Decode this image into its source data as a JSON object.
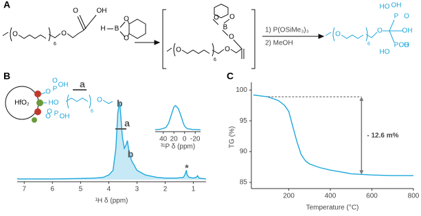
{
  "panel_labels": [
    "A",
    "B",
    "C"
  ],
  "scheme": {
    "reactant": [
      "O",
      "6",
      "O",
      "O",
      "OH"
    ],
    "borane": [
      "H",
      "B",
      "O",
      "O"
    ],
    "intermediate": [
      "O",
      "6",
      "O",
      "O",
      "B",
      "O",
      "O"
    ],
    "conditions": [
      "1) P(OSiMe₃)₃",
      "2) MeOH"
    ],
    "product": [
      "O",
      "6",
      "O",
      "OH",
      "P",
      "O",
      "OH",
      "HO",
      "OH",
      "P",
      "O",
      "HO"
    ]
  },
  "surface": [
    "HfO₂",
    "O",
    "P",
    "OH",
    "HO",
    "O",
    "P",
    "OH",
    "O",
    "O",
    "6",
    "O",
    "a",
    "b"
  ],
  "chart_data": [
    {
      "type": "line",
      "x_label": "¹H δ (ppm)",
      "xlim": [
        7.25,
        0.55
      ],
      "xticks": [
        7,
        6,
        5,
        4,
        3,
        2,
        1
      ],
      "ylim": [
        0,
        100
      ],
      "color": "#1ea7dc",
      "fill": true,
      "x": [
        7.25,
        6,
        5,
        4.5,
        4.2,
        4.0,
        3.85,
        3.75,
        3.68,
        3.62,
        3.58,
        3.52,
        3.45,
        3.38,
        3.34,
        3.3,
        3.2,
        3.0,
        2.7,
        2.3,
        2.0,
        1.6,
        1.35,
        1.28,
        1.25,
        1.22,
        1.15,
        1.0,
        0.9,
        0.85,
        0.8,
        0.55
      ],
      "values": [
        1,
        1,
        1.5,
        2,
        3,
        6,
        12,
        40,
        85,
        100,
        85,
        55,
        40,
        45,
        50,
        40,
        25,
        12,
        6,
        3,
        2,
        2,
        3,
        8,
        12,
        6,
        3,
        2,
        3,
        5,
        2,
        1
      ],
      "annotations": [
        "a",
        "b",
        "*"
      ]
    },
    {
      "type": "line",
      "x_label": "³¹P δ (ppm)",
      "xlim": [
        55,
        -30
      ],
      "xticks": [
        40,
        20,
        0,
        -20
      ],
      "ylim": [
        0,
        100
      ],
      "color": "#1ea7dc",
      "fill": false,
      "x": [
        55,
        45,
        35,
        30,
        25,
        20,
        17,
        12,
        8,
        3,
        0,
        -5,
        -15,
        -30
      ],
      "values": [
        2,
        4,
        10,
        25,
        55,
        85,
        90,
        80,
        60,
        30,
        15,
        6,
        3,
        2
      ]
    },
    {
      "type": "line",
      "x_label": "Temperature (°C)",
      "y_label": "TG (%)",
      "xlim": [
        20,
        800
      ],
      "ylim": [
        84,
        100.7
      ],
      "xticks": [
        200,
        400,
        600,
        800
      ],
      "yticks": [
        85,
        90,
        95,
        100
      ],
      "color": "#1ea7dc",
      "fill": false,
      "x": [
        30,
        100,
        150,
        180,
        200,
        220,
        240,
        260,
        280,
        300,
        350,
        400,
        450,
        500,
        550,
        600,
        700,
        800
      ],
      "values": [
        99.2,
        98.9,
        98.3,
        97.5,
        96.5,
        94,
        91.5,
        89.5,
        88.5,
        88,
        87.4,
        87,
        86.7,
        86.4,
        86.3,
        86.2,
        86.1,
        86.1
      ],
      "annotation": "- 12.6 m%",
      "mass_loss_range": [
        98.9,
        86.3
      ],
      "mass_loss_x": 550
    }
  ]
}
